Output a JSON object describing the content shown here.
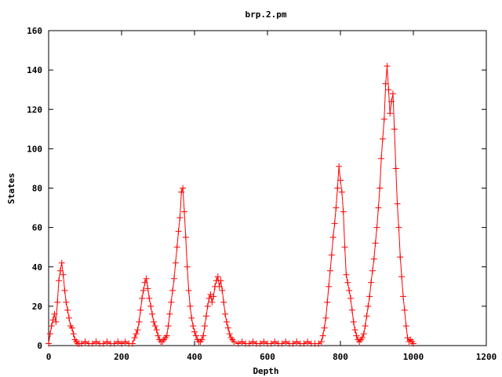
{
  "chart_data": {
    "type": "line",
    "title": "brp.2.pm",
    "xlabel": "Depth",
    "ylabel": "States",
    "xlim": [
      0,
      1200
    ],
    "ylim": [
      0,
      160
    ],
    "xticks": [
      0,
      200,
      400,
      600,
      800,
      1000,
      1200
    ],
    "yticks": [
      0,
      20,
      40,
      60,
      80,
      100,
      120,
      140,
      160
    ],
    "grid": false,
    "legend": "none",
    "series_color": "#ff0000",
    "marker": "plus",
    "series": [
      {
        "values": [
          [
            0,
            1
          ],
          [
            4,
            6
          ],
          [
            8,
            10
          ],
          [
            12,
            13
          ],
          [
            16,
            16
          ],
          [
            20,
            12
          ],
          [
            24,
            22
          ],
          [
            28,
            33
          ],
          [
            32,
            38
          ],
          [
            36,
            42
          ],
          [
            40,
            36
          ],
          [
            44,
            28
          ],
          [
            48,
            22
          ],
          [
            52,
            18
          ],
          [
            56,
            14
          ],
          [
            60,
            10
          ],
          [
            64,
            9
          ],
          [
            68,
            6
          ],
          [
            72,
            3
          ],
          [
            76,
            2
          ],
          [
            80,
            1
          ],
          [
            84,
            1
          ],
          [
            90,
            1
          ],
          [
            100,
            2
          ],
          [
            110,
            1
          ],
          [
            120,
            1
          ],
          [
            130,
            2
          ],
          [
            140,
            1
          ],
          [
            150,
            1
          ],
          [
            160,
            2
          ],
          [
            170,
            1
          ],
          [
            180,
            1
          ],
          [
            190,
            2
          ],
          [
            200,
            1
          ],
          [
            210,
            2
          ],
          [
            220,
            1
          ],
          [
            230,
            1
          ],
          [
            236,
            4
          ],
          [
            240,
            6
          ],
          [
            244,
            8
          ],
          [
            248,
            12
          ],
          [
            252,
            18
          ],
          [
            256,
            24
          ],
          [
            260,
            28
          ],
          [
            264,
            32
          ],
          [
            268,
            34
          ],
          [
            272,
            29
          ],
          [
            276,
            24
          ],
          [
            280,
            20
          ],
          [
            284,
            16
          ],
          [
            288,
            12
          ],
          [
            292,
            10
          ],
          [
            296,
            8
          ],
          [
            300,
            5
          ],
          [
            304,
            3
          ],
          [
            308,
            2
          ],
          [
            312,
            2
          ],
          [
            316,
            3
          ],
          [
            320,
            4
          ],
          [
            324,
            5
          ],
          [
            328,
            10
          ],
          [
            332,
            16
          ],
          [
            336,
            22
          ],
          [
            340,
            28
          ],
          [
            344,
            34
          ],
          [
            348,
            42
          ],
          [
            352,
            50
          ],
          [
            356,
            58
          ],
          [
            360,
            65
          ],
          [
            364,
            78
          ],
          [
            368,
            80
          ],
          [
            372,
            68
          ],
          [
            376,
            55
          ],
          [
            380,
            40
          ],
          [
            384,
            28
          ],
          [
            388,
            20
          ],
          [
            392,
            14
          ],
          [
            396,
            10
          ],
          [
            400,
            7
          ],
          [
            404,
            5
          ],
          [
            408,
            3
          ],
          [
            412,
            2
          ],
          [
            416,
            2
          ],
          [
            420,
            3
          ],
          [
            424,
            5
          ],
          [
            428,
            10
          ],
          [
            432,
            15
          ],
          [
            436,
            20
          ],
          [
            440,
            24
          ],
          [
            444,
            26
          ],
          [
            448,
            22
          ],
          [
            452,
            25
          ],
          [
            456,
            30
          ],
          [
            460,
            33
          ],
          [
            464,
            35
          ],
          [
            468,
            30
          ],
          [
            472,
            33
          ],
          [
            476,
            28
          ],
          [
            480,
            22
          ],
          [
            484,
            16
          ],
          [
            488,
            12
          ],
          [
            492,
            9
          ],
          [
            496,
            6
          ],
          [
            500,
            4
          ],
          [
            504,
            3
          ],
          [
            508,
            2
          ],
          [
            520,
            1
          ],
          [
            530,
            2
          ],
          [
            540,
            1
          ],
          [
            550,
            1
          ],
          [
            560,
            2
          ],
          [
            570,
            1
          ],
          [
            580,
            1
          ],
          [
            590,
            2
          ],
          [
            600,
            1
          ],
          [
            610,
            1
          ],
          [
            620,
            2
          ],
          [
            630,
            1
          ],
          [
            640,
            1
          ],
          [
            650,
            2
          ],
          [
            660,
            1
          ],
          [
            670,
            1
          ],
          [
            680,
            2
          ],
          [
            690,
            1
          ],
          [
            700,
            1
          ],
          [
            710,
            2
          ],
          [
            720,
            1
          ],
          [
            730,
            1
          ],
          [
            740,
            1
          ],
          [
            748,
            2
          ],
          [
            752,
            5
          ],
          [
            756,
            9
          ],
          [
            760,
            14
          ],
          [
            764,
            22
          ],
          [
            768,
            30
          ],
          [
            772,
            38
          ],
          [
            776,
            46
          ],
          [
            780,
            55
          ],
          [
            784,
            62
          ],
          [
            788,
            70
          ],
          [
            792,
            80
          ],
          [
            796,
            91
          ],
          [
            800,
            84
          ],
          [
            804,
            78
          ],
          [
            808,
            68
          ],
          [
            812,
            50
          ],
          [
            816,
            36
          ],
          [
            820,
            32
          ],
          [
            824,
            28
          ],
          [
            828,
            24
          ],
          [
            832,
            18
          ],
          [
            836,
            12
          ],
          [
            840,
            8
          ],
          [
            844,
            5
          ],
          [
            848,
            3
          ],
          [
            852,
            2
          ],
          [
            856,
            3
          ],
          [
            860,
            4
          ],
          [
            864,
            6
          ],
          [
            868,
            10
          ],
          [
            872,
            15
          ],
          [
            876,
            20
          ],
          [
            880,
            25
          ],
          [
            884,
            32
          ],
          [
            888,
            38
          ],
          [
            892,
            44
          ],
          [
            896,
            52
          ],
          [
            900,
            60
          ],
          [
            904,
            70
          ],
          [
            908,
            80
          ],
          [
            912,
            95
          ],
          [
            916,
            105
          ],
          [
            920,
            115
          ],
          [
            924,
            133
          ],
          [
            928,
            142
          ],
          [
            932,
            130
          ],
          [
            936,
            118
          ],
          [
            940,
            124
          ],
          [
            944,
            128
          ],
          [
            948,
            110
          ],
          [
            952,
            90
          ],
          [
            956,
            72
          ],
          [
            960,
            60
          ],
          [
            964,
            45
          ],
          [
            968,
            35
          ],
          [
            972,
            25
          ],
          [
            976,
            18
          ],
          [
            980,
            10
          ],
          [
            984,
            4
          ],
          [
            988,
            2
          ],
          [
            992,
            3
          ],
          [
            996,
            2
          ],
          [
            1000,
            1
          ]
        ]
      }
    ]
  }
}
